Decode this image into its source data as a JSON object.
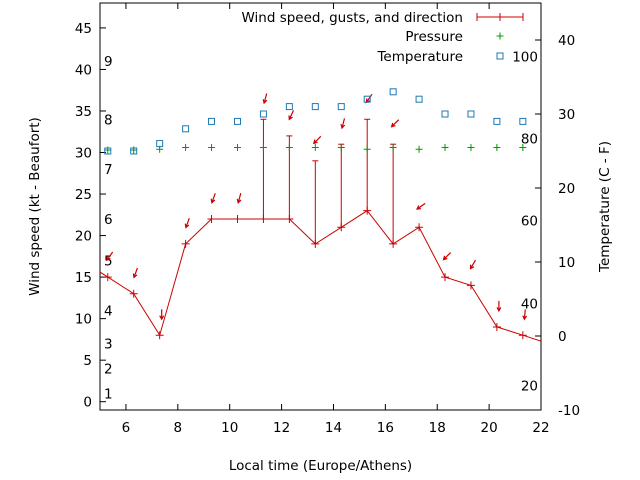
{
  "chart_data": {
    "type": "line",
    "xlabel": "Local time (Europe/Athens)",
    "ylabel": "Wind speed (kt - Beaufort)",
    "y2label": "Temperature (C - F)",
    "xlim": [
      5,
      22
    ],
    "ylim": [
      -1,
      48
    ],
    "y2lim": [
      -10,
      45
    ],
    "x_ticks": [
      6,
      8,
      10,
      12,
      14,
      16,
      18,
      20,
      22
    ],
    "y_ticks": [
      0,
      5,
      10,
      15,
      20,
      25,
      30,
      35,
      40,
      45
    ],
    "y2_ticks": [
      -10,
      0,
      10,
      20,
      30,
      40
    ],
    "beaufort_labels": [
      {
        "label": "1",
        "kt": 1
      },
      {
        "label": "2",
        "kt": 4
      },
      {
        "label": "3",
        "kt": 7
      },
      {
        "label": "4",
        "kt": 11
      },
      {
        "label": "5",
        "kt": 17
      },
      {
        "label": "6",
        "kt": 22
      },
      {
        "label": "7",
        "kt": 28
      },
      {
        "label": "8",
        "kt": 34
      },
      {
        "label": "9",
        "kt": 41
      }
    ],
    "fahrenheit_labels": [
      {
        "label": "20",
        "celsius": -6.7
      },
      {
        "label": "40",
        "celsius": 4.4
      },
      {
        "label": "60",
        "celsius": 15.6
      },
      {
        "label": "80",
        "celsius": 26.7
      },
      {
        "label": "100",
        "celsius": 37.8
      }
    ],
    "legend_position": "top-right",
    "series": [
      {
        "name": "Wind speed, gusts, and direction",
        "color": "#cc0000",
        "axis": "y",
        "x": [
          5.3,
          6.3,
          7.3,
          8.3,
          9.3,
          10.3,
          11.3,
          12.3,
          13.3,
          14.3,
          15.3,
          16.3,
          17.3,
          18.3,
          19.3,
          20.3,
          21.3
        ],
        "values": [
          15,
          13,
          8,
          19,
          22,
          22,
          22,
          22,
          19,
          21,
          23,
          19,
          21,
          15,
          14,
          9,
          8
        ],
        "gusts": [
          null,
          null,
          null,
          null,
          null,
          null,
          34,
          32,
          29,
          31,
          34,
          31,
          null,
          null,
          null,
          null,
          null
        ],
        "direction_deg": [
          35,
          20,
          0,
          20,
          20,
          15,
          15,
          25,
          45,
          15,
          35,
          45,
          55,
          45,
          30,
          0,
          5
        ]
      },
      {
        "name": "Pressure",
        "color": "#009900",
        "axis": "y",
        "x": [
          5.3,
          6.3,
          7.3,
          8.3,
          9.3,
          10.3,
          11.3,
          12.3,
          13.3,
          14.3,
          15.3,
          16.3,
          17.3,
          18.3,
          19.3,
          20.3,
          21.3
        ],
        "values": [
          30.3,
          30.3,
          30.4,
          30.6,
          30.6,
          30.6,
          30.6,
          30.6,
          30.6,
          30.6,
          30.4,
          30.6,
          30.4,
          30.6,
          30.6,
          30.6,
          30.6
        ]
      },
      {
        "name": "Temperature",
        "color": "#1f78b4",
        "axis": "y2",
        "x": [
          5.3,
          6.3,
          7.3,
          8.3,
          9.3,
          10.3,
          11.3,
          12.3,
          13.3,
          14.3,
          15.3,
          16.3,
          17.3,
          18.3,
          19.3,
          20.3,
          21.3
        ],
        "values": [
          25,
          25,
          26,
          28,
          29,
          29,
          30,
          31,
          31,
          31,
          32,
          33,
          32,
          30,
          30,
          29,
          29
        ]
      }
    ]
  }
}
